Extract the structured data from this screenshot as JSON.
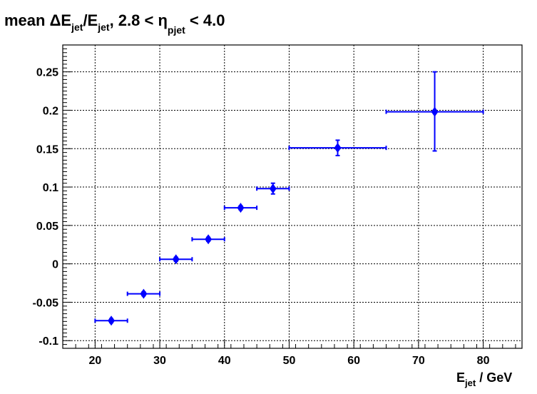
{
  "title": {
    "prefix": "mean ",
    "delta": "ΔE",
    "sub1": "jet",
    "slash": "/E",
    "sub2": "jet",
    "range_pre": ", 2.8 < ",
    "eta": "η",
    "sub3": "pjet",
    "range_post": " < 4.0"
  },
  "xaxis_title": {
    "main": "E",
    "sub": "jet",
    "unit": " / GeV"
  },
  "chart_data": {
    "type": "scatter",
    "title": "mean ΔE_jet/E_jet, 2.8 < η_pjet < 4.0",
    "xlabel": "E_jet / GeV",
    "ylabel": "",
    "xlim": [
      15,
      86
    ],
    "ylim": [
      -0.11,
      0.285
    ],
    "grid": true,
    "xticks": [
      20,
      30,
      40,
      50,
      60,
      70,
      80
    ],
    "xtick_labels": [
      "20",
      "30",
      "40",
      "50",
      "60",
      "70",
      "80"
    ],
    "yticks": [
      -0.1,
      -0.05,
      0,
      0.05,
      0.1,
      0.15,
      0.2,
      0.25
    ],
    "ytick_labels": [
      "-0.1",
      "-0.05",
      "0",
      "0.05",
      "0.1",
      "0.15",
      "0.2",
      "0.25"
    ],
    "marker_color": "#0000ff",
    "series": [
      {
        "points": [
          {
            "x": 22.5,
            "y": -0.074,
            "xlo": 20,
            "xhi": 25,
            "ylo": -0.0765,
            "yhi": -0.0715
          },
          {
            "x": 27.5,
            "y": -0.039,
            "xlo": 25,
            "xhi": 30,
            "ylo": -0.0415,
            "yhi": -0.0365
          },
          {
            "x": 32.5,
            "y": 0.006,
            "xlo": 30,
            "xhi": 35,
            "ylo": 0.0035,
            "yhi": 0.0085
          },
          {
            "x": 37.5,
            "y": 0.032,
            "xlo": 35,
            "xhi": 40,
            "ylo": 0.0295,
            "yhi": 0.0345
          },
          {
            "x": 42.5,
            "y": 0.073,
            "xlo": 40,
            "xhi": 45,
            "ylo": 0.0705,
            "yhi": 0.0755
          },
          {
            "x": 47.5,
            "y": 0.098,
            "xlo": 45,
            "xhi": 50,
            "ylo": 0.091,
            "yhi": 0.105
          },
          {
            "x": 57.5,
            "y": 0.151,
            "xlo": 50,
            "xhi": 65,
            "ylo": 0.141,
            "yhi": 0.161
          },
          {
            "x": 72.5,
            "y": 0.198,
            "xlo": 65,
            "xhi": 80,
            "ylo": 0.147,
            "yhi": 0.25
          }
        ]
      }
    ]
  }
}
